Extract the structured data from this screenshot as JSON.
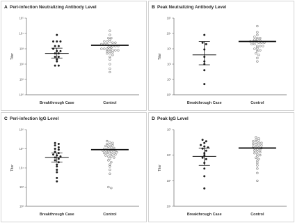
{
  "chart_data": [
    {
      "type": "scatter",
      "letter": "A",
      "title": "Peri-infection Neutralizing Antibody Level",
      "ylabel": "Titer",
      "log_scale": true,
      "ylim": [
        1,
        100000
      ],
      "yticks": [
        "10⁰",
        "10¹",
        "10²",
        "10³",
        "10⁴",
        "10⁵"
      ],
      "ytick_values": [
        1,
        10,
        100,
        1000,
        10000,
        100000
      ],
      "categories": [
        "Breakthrough Case",
        "Control"
      ],
      "series": [
        {
          "values": [
            8000,
            3000,
            3000,
            3000,
            1500,
            1500,
            1000,
            700,
            700,
            500,
            500,
            300,
            300,
            200,
            150,
            80,
            80
          ],
          "mean": 500,
          "ci": [
            250,
            1100
          ]
        },
        {
          "values": [
            15000,
            8000,
            5000,
            5000,
            4000,
            3000,
            3000,
            3000,
            2500,
            2500,
            2000,
            2000,
            2000,
            1500,
            1500,
            1500,
            1500,
            1200,
            1200,
            1000,
            1000,
            1000,
            1000,
            800,
            800,
            800,
            700,
            700,
            600,
            500,
            500,
            400,
            300,
            200,
            100,
            50,
            30
          ],
          "mean": 1700
        }
      ]
    },
    {
      "type": "scatter",
      "letter": "B",
      "title": "Peak Neutralizing Antibody Level",
      "ylabel": "Titer",
      "log_scale": true,
      "ylim": [
        1,
        100000
      ],
      "yticks": [
        "10⁰",
        "10¹",
        "10²",
        "10³",
        "10⁴",
        "10⁵"
      ],
      "ytick_values": [
        1,
        10,
        100,
        1000,
        10000,
        100000
      ],
      "categories": [
        "Breakthrough Case",
        "Control"
      ],
      "series": [
        {
          "values": [
            8000,
            2500,
            2000,
            900,
            300,
            150,
            100,
            40,
            5
          ],
          "mean": 400,
          "ci": [
            90,
            3000
          ]
        },
        {
          "values": [
            30000,
            12000,
            8000,
            6000,
            5000,
            5000,
            4000,
            4000,
            3500,
            3000,
            3000,
            3000,
            2500,
            2500,
            2500,
            2000,
            2000,
            1500,
            1500,
            1500,
            1200,
            1000,
            1000,
            800,
            700,
            500,
            400,
            250,
            150
          ],
          "mean": 3000
        }
      ]
    },
    {
      "type": "scatter",
      "letter": "C",
      "title": "Peri-infection IgG Level",
      "ylabel": "Titer",
      "log_scale": true,
      "ylim": [
        100,
        1000000
      ],
      "yticks": [
        "10²",
        "10³",
        "10⁴",
        "10⁵",
        "10⁶"
      ],
      "ytick_values": [
        100,
        1000,
        10000,
        100000,
        1000000
      ],
      "categories": [
        "Breakthrough Case",
        "Control"
      ],
      "series": [
        {
          "values": [
            200000,
            180000,
            150000,
            120000,
            100000,
            90000,
            70000,
            60000,
            50000,
            45000,
            40000,
            35000,
            30000,
            25000,
            20000,
            15000,
            12000,
            8000,
            6000,
            3000,
            2000
          ],
          "mean": 35000,
          "ci": [
            20000,
            60000
          ]
        },
        {
          "values": [
            250000,
            220000,
            200000,
            180000,
            160000,
            150000,
            140000,
            130000,
            120000,
            110000,
            100000,
            100000,
            90000,
            90000,
            85000,
            80000,
            80000,
            75000,
            70000,
            70000,
            65000,
            60000,
            60000,
            55000,
            50000,
            50000,
            45000,
            40000,
            40000,
            35000,
            30000,
            25000,
            20000,
            15000,
            12000,
            8000,
            5000,
            1000,
            900
          ],
          "mean": 90000
        }
      ]
    },
    {
      "type": "scatter",
      "letter": "D",
      "title": "Peak IgG Level",
      "ylabel": "Titer",
      "log_scale": true,
      "ylim": [
        10000,
        10000000
      ],
      "yticks": [
        "10⁴",
        "10⁵",
        "10⁶",
        "10⁷"
      ],
      "ytick_values": [
        10000,
        100000,
        1000000,
        10000000
      ],
      "categories": [
        "Breakthrough Case",
        "Control"
      ],
      "series": [
        {
          "values": [
            4000000,
            3500000,
            3000000,
            2500000,
            2200000,
            2000000,
            1800000,
            1500000,
            1200000,
            1000000,
            800000,
            700000,
            500000,
            300000,
            150000,
            50000
          ],
          "mean": 900000,
          "ci": [
            400000,
            1900000
          ]
        },
        {
          "values": [
            5000000,
            4500000,
            4000000,
            3800000,
            3500000,
            3200000,
            3000000,
            3000000,
            2800000,
            2600000,
            2500000,
            2400000,
            2200000,
            2000000,
            2000000,
            1900000,
            1800000,
            1700000,
            1600000,
            1500000,
            1400000,
            1300000,
            1200000,
            1100000,
            1000000,
            900000,
            800000,
            700000,
            600000,
            500000,
            400000,
            300000,
            200000,
            100000
          ],
          "mean": 1900000
        }
      ]
    }
  ]
}
